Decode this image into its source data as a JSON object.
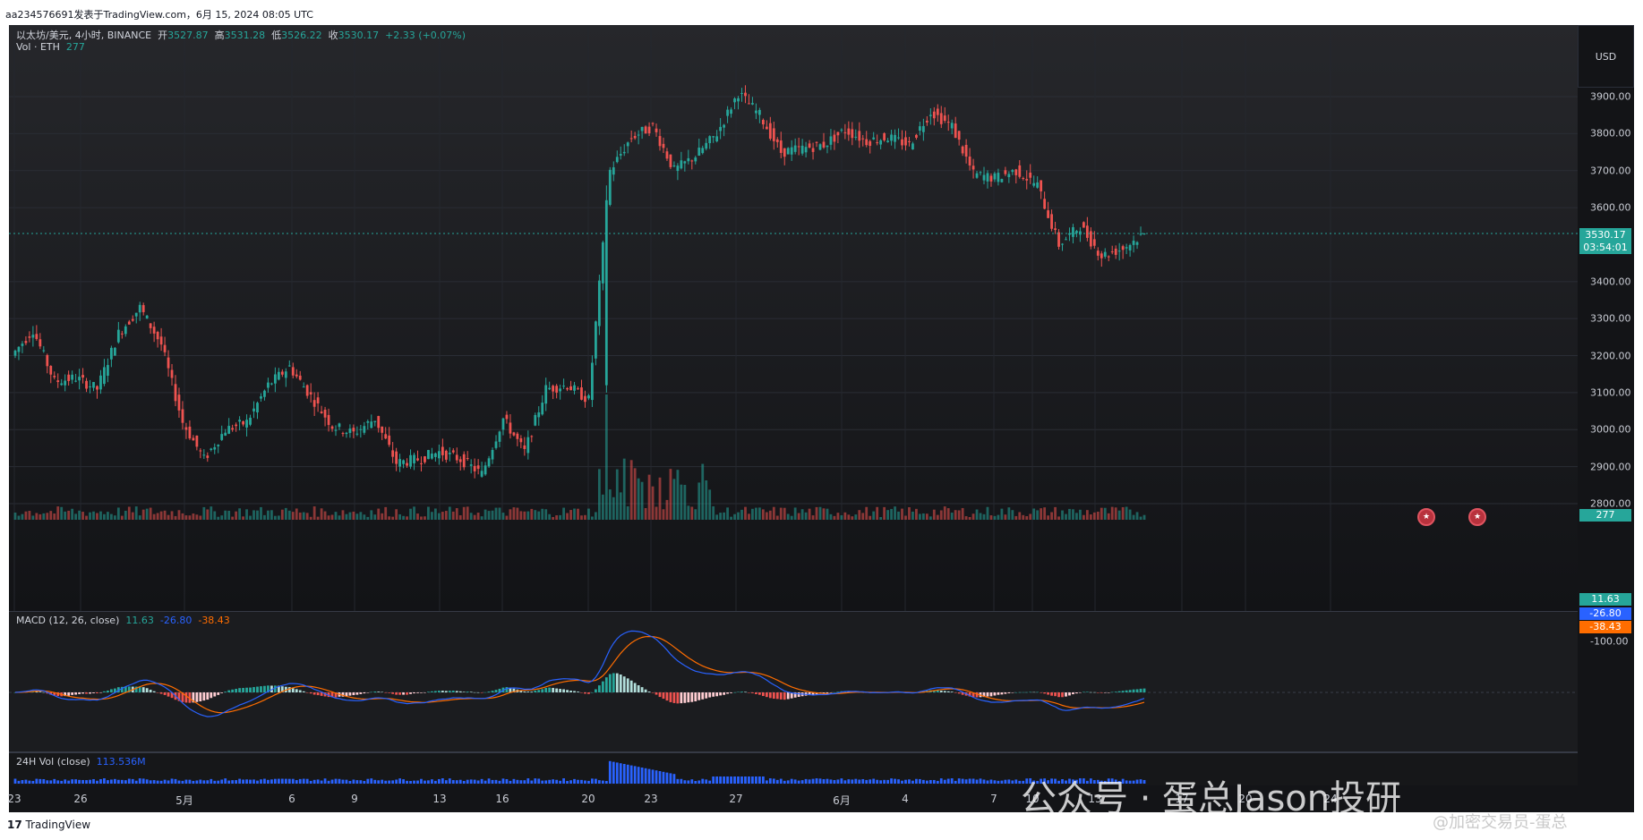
{
  "header": {
    "publish_line": "aa234576691发表于TradingView.com，6月 15, 2024 08:05 UTC"
  },
  "legend": {
    "symbol": "以太坊/美元, 4小时, BINANCE",
    "open_label": "开",
    "open": "3527.87",
    "high_label": "高",
    "high": "3531.28",
    "low_label": "低",
    "low": "3526.22",
    "close_label": "收",
    "close": "3530.17",
    "change": "+2.33 (+0.07%)",
    "vol_label": "Vol · ETH",
    "vol_value": "277"
  },
  "macd": {
    "label": "MACD (12, 26, close)",
    "hist": "11.63",
    "macd": "-26.80",
    "signal": "-38.43"
  },
  "vol24": {
    "label": "24H Vol (close)",
    "value": "113.536M"
  },
  "price_axis": {
    "currency": "USD",
    "labels": [
      "3900.00",
      "3800.00",
      "3700.00",
      "3600.00",
      "3400.00",
      "3300.00",
      "3200.00",
      "3100.00",
      "3000.00",
      "2900.00",
      "2800.00"
    ],
    "current_price": "3530.17",
    "countdown": "03:54:01",
    "vol_tag": "277",
    "macd_hist_tag": "11.63",
    "macd_tag": "-26.80",
    "signal_tag": "-38.43",
    "macd_axis_label": "-100.00"
  },
  "time_axis": {
    "labels": [
      "23",
      "26",
      "5月",
      "6",
      "9",
      "13",
      "16",
      "20",
      "23",
      "27",
      "6月",
      "4",
      "7",
      "10",
      "13",
      "17",
      "20",
      "24"
    ]
  },
  "branding": {
    "logo_text": "TradingView"
  },
  "watermark": {
    "main": "公众号 · 蛋总Jason投研",
    "corner": "@加密交易员-蛋总"
  },
  "colors": {
    "up": "#26a69a",
    "down": "#ef5350",
    "macd": "#2962ff",
    "signal": "#ff6d00",
    "vol24": "#2962ff"
  },
  "chart_data": {
    "type": "candlestick",
    "interval": "4小时",
    "x_start": "4月 23",
    "x_end": "6月 15",
    "ylim": [
      2800,
      3950
    ],
    "price_series": [
      {
        "day": "23",
        "price": 3200
      },
      {
        "day": "24",
        "price": 3270
      },
      {
        "day": "25",
        "price": 3130
      },
      {
        "day": "26",
        "price": 3140
      },
      {
        "day": "27",
        "price": 3110
      },
      {
        "day": "28",
        "price": 3260
      },
      {
        "day": "29",
        "price": 3330
      },
      {
        "day": "30",
        "price": 3230
      },
      {
        "day": "5月 1",
        "price": 3020
      },
      {
        "day": "2",
        "price": 2920
      },
      {
        "day": "3",
        "price": 3000
      },
      {
        "day": "4",
        "price": 3020
      },
      {
        "day": "5",
        "price": 3120
      },
      {
        "day": "6",
        "price": 3170
      },
      {
        "day": "7",
        "price": 3090
      },
      {
        "day": "8",
        "price": 3010
      },
      {
        "day": "9",
        "price": 2990
      },
      {
        "day": "10",
        "price": 3030
      },
      {
        "day": "11",
        "price": 2910
      },
      {
        "day": "12",
        "price": 2920
      },
      {
        "day": "13",
        "price": 2940
      },
      {
        "day": "14",
        "price": 2920
      },
      {
        "day": "15",
        "price": 2880
      },
      {
        "day": "16",
        "price": 3030
      },
      {
        "day": "17",
        "price": 2940
      },
      {
        "day": "18",
        "price": 3110
      },
      {
        "day": "19",
        "price": 3120
      },
      {
        "day": "20",
        "price": 3080
      },
      {
        "day": "21",
        "price": 3700
      },
      {
        "day": "22",
        "price": 3790
      },
      {
        "day": "23",
        "price": 3820
      },
      {
        "day": "24",
        "price": 3700
      },
      {
        "day": "25",
        "price": 3740
      },
      {
        "day": "26",
        "price": 3800
      },
      {
        "day": "27",
        "price": 3910
      },
      {
        "day": "28",
        "price": 3850
      },
      {
        "day": "29",
        "price": 3750
      },
      {
        "day": "30",
        "price": 3760
      },
      {
        "day": "31",
        "price": 3770
      },
      {
        "day": "6月 1",
        "price": 3810
      },
      {
        "day": "2",
        "price": 3780
      },
      {
        "day": "3",
        "price": 3790
      },
      {
        "day": "4",
        "price": 3770
      },
      {
        "day": "5",
        "price": 3860
      },
      {
        "day": "6",
        "price": 3820
      },
      {
        "day": "7",
        "price": 3690
      },
      {
        "day": "8",
        "price": 3680
      },
      {
        "day": "9",
        "price": 3700
      },
      {
        "day": "10",
        "price": 3660
      },
      {
        "day": "11",
        "price": 3500
      },
      {
        "day": "12",
        "price": 3550
      },
      {
        "day": "13",
        "price": 3470
      },
      {
        "day": "14",
        "price": 3490
      },
      {
        "day": "15",
        "price": 3530
      }
    ],
    "macd_hist_last": 11.63,
    "macd_last": -26.8,
    "signal_last": -38.43,
    "vol24_last": "113.536M"
  }
}
